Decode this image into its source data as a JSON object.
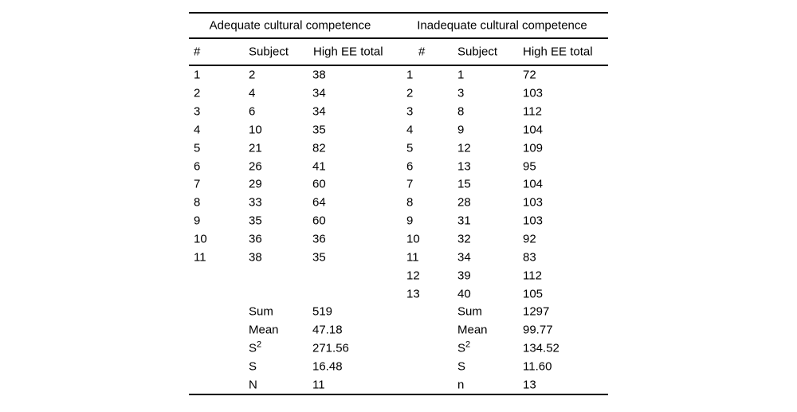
{
  "page": {
    "background_color": "#ffffff",
    "text_color": "#000000",
    "rule_color": "#000000"
  },
  "table": {
    "groups": [
      {
        "title": "Adequate cultural competence"
      },
      {
        "title": "Inadequate cultural competence"
      }
    ],
    "columns": [
      "#",
      "Subject",
      "High EE total"
    ],
    "data_rows": [
      [
        "1",
        "2",
        "38",
        "1",
        "1",
        "72"
      ],
      [
        "2",
        "4",
        "34",
        "2",
        "3",
        "103"
      ],
      [
        "3",
        "6",
        "34",
        "3",
        "8",
        "112"
      ],
      [
        "4",
        "10",
        "35",
        "4",
        "9",
        "104"
      ],
      [
        "5",
        "21",
        "82",
        "5",
        "12",
        "109"
      ],
      [
        "6",
        "26",
        "41",
        "6",
        "13",
        "95"
      ],
      [
        "7",
        "29",
        "60",
        "7",
        "15",
        "104"
      ],
      [
        "8",
        "33",
        "64",
        "8",
        "28",
        "103"
      ],
      [
        "9",
        "35",
        "60",
        "9",
        "31",
        "103"
      ],
      [
        "10",
        "36",
        "36",
        "10",
        "32",
        "92"
      ],
      [
        "11",
        "38",
        "35",
        "11",
        "34",
        "83"
      ],
      [
        "",
        "",
        "",
        "12",
        "39",
        "112"
      ],
      [
        "",
        "",
        "",
        "13",
        "40",
        "105"
      ]
    ],
    "summary_rows": [
      [
        "",
        "Sum",
        "519",
        "",
        "Sum",
        "1297"
      ],
      [
        "",
        "Mean",
        "47.18",
        "",
        "Mean",
        "99.77"
      ],
      [
        "",
        "S²",
        "271.56",
        "",
        "S²",
        "134.52"
      ],
      [
        "",
        "S",
        "16.48",
        "",
        "S",
        "11.60"
      ],
      [
        "",
        "N",
        "11",
        "",
        "n",
        "13"
      ]
    ]
  }
}
